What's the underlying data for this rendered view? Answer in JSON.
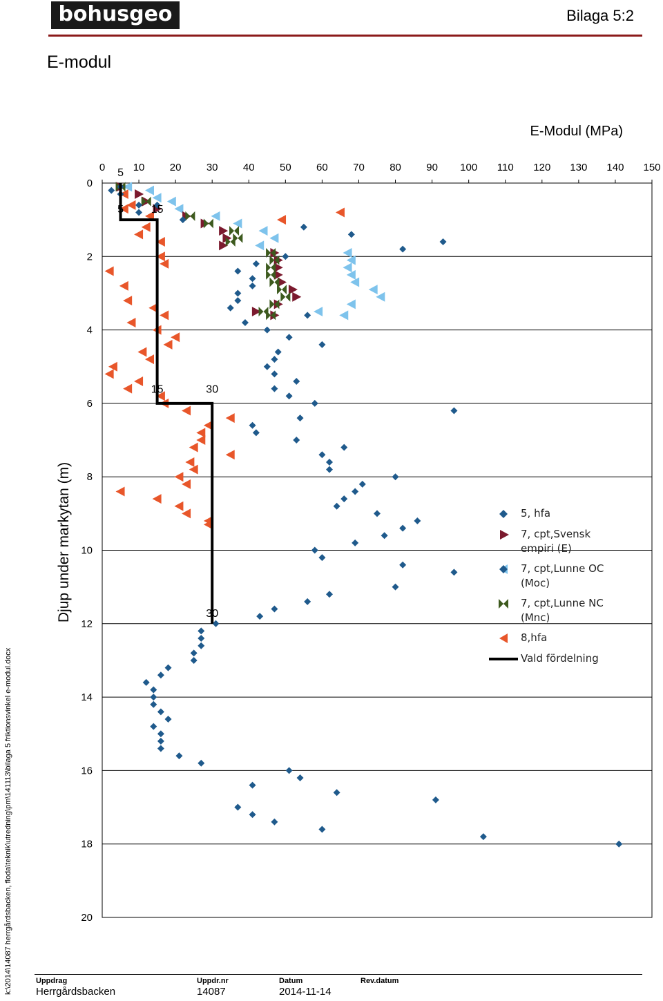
{
  "header": {
    "logo_text": "bohusgeo",
    "appendix": "Bilaga 5:2"
  },
  "page_title": "E-modul",
  "side_path": "k:\\2014\\14087 herrgårdsbacken, floda\\teknik\\utredning\\pm\\141113\\bilaga 5 friktionsvinkel e-modul.docx",
  "footer": {
    "uppdrag_label": "Uppdrag",
    "uppdrag_value": "Herrgårdsbacken",
    "uppdrnr_label": "Uppdr.nr",
    "uppdrnr_value": "14087",
    "datum_label": "Datum",
    "datum_value": "2014-11-14",
    "revdatum_label": "Rev.datum"
  },
  "chart_data": {
    "type": "scatter",
    "title": "E-Modul (MPa)",
    "ylabel": "Djup under markytan (m)",
    "xlim": [
      0,
      150
    ],
    "ylim": [
      20,
      0
    ],
    "x_ticks": [
      0,
      10,
      20,
      30,
      40,
      50,
      60,
      70,
      80,
      90,
      100,
      110,
      120,
      130,
      140,
      150
    ],
    "y_ticks": [
      0,
      2,
      4,
      6,
      8,
      10,
      12,
      14,
      16,
      18,
      20
    ],
    "grid": "horizontal",
    "colors": {
      "hfa5": "#1f5a8c",
      "svensk": "#7b1a2e",
      "lunne_oc": "#7ec3ec",
      "lunne_nc": "#3d5a1e",
      "hfa8": "#e8562a",
      "vald": "#000000"
    },
    "series": [
      {
        "name": "5, hfa",
        "marker": "diamond",
        "color": "#1f5a8c",
        "points": [
          [
            2.5,
            0.2
          ],
          [
            5,
            0.1
          ],
          [
            5,
            0.3
          ],
          [
            10,
            0.6
          ],
          [
            10,
            0.8
          ],
          [
            15,
            0.6
          ],
          [
            22,
            1
          ],
          [
            55,
            1.2
          ],
          [
            68,
            1.4
          ],
          [
            82,
            1.8
          ],
          [
            93,
            1.6
          ],
          [
            50,
            2
          ],
          [
            37,
            2.4
          ],
          [
            42,
            2.2
          ],
          [
            41,
            2.6
          ],
          [
            41,
            2.8
          ],
          [
            37,
            3
          ],
          [
            37,
            3.2
          ],
          [
            35,
            3.4
          ],
          [
            56,
            3.6
          ],
          [
            39,
            3.8
          ],
          [
            45,
            4
          ],
          [
            51,
            4.2
          ],
          [
            60,
            4.4
          ],
          [
            48,
            4.6
          ],
          [
            47,
            4.8
          ],
          [
            45,
            5
          ],
          [
            47,
            5.2
          ],
          [
            53,
            5.4
          ],
          [
            47,
            5.6
          ],
          [
            51,
            5.8
          ],
          [
            58,
            6
          ],
          [
            96,
            6.2
          ],
          [
            54,
            6.4
          ],
          [
            41,
            6.6
          ],
          [
            42,
            6.8
          ],
          [
            53,
            7
          ],
          [
            66,
            7.2
          ],
          [
            60,
            7.4
          ],
          [
            62,
            7.6
          ],
          [
            62,
            7.8
          ],
          [
            80,
            8
          ],
          [
            71,
            8.2
          ],
          [
            69,
            8.4
          ],
          [
            66,
            8.6
          ],
          [
            64,
            8.8
          ],
          [
            75,
            9
          ],
          [
            86,
            9.2
          ],
          [
            82,
            9.4
          ],
          [
            77,
            9.6
          ],
          [
            69,
            9.8
          ],
          [
            58,
            10
          ],
          [
            60,
            10.2
          ],
          [
            82,
            10.4
          ],
          [
            96,
            10.6
          ],
          [
            80,
            11
          ],
          [
            62,
            11.2
          ],
          [
            56,
            11.4
          ],
          [
            47,
            11.6
          ],
          [
            43,
            11.8
          ],
          [
            31,
            12
          ],
          [
            27,
            12.2
          ],
          [
            27,
            12.4
          ],
          [
            27,
            12.6
          ],
          [
            25,
            12.8
          ],
          [
            25,
            13
          ],
          [
            18,
            13.2
          ],
          [
            16,
            13.4
          ],
          [
            12,
            13.6
          ],
          [
            14,
            13.8
          ],
          [
            14,
            14
          ],
          [
            14,
            14.2
          ],
          [
            16,
            14.4
          ],
          [
            18,
            14.6
          ],
          [
            14,
            14.8
          ],
          [
            16,
            15
          ],
          [
            16,
            15.2
          ],
          [
            16,
            15.4
          ],
          [
            21,
            15.6
          ],
          [
            27,
            15.8
          ],
          [
            51,
            16
          ],
          [
            54,
            16.2
          ],
          [
            41,
            16.4
          ],
          [
            64,
            16.6
          ],
          [
            91,
            16.8
          ],
          [
            37,
            17
          ],
          [
            41,
            17.2
          ],
          [
            47,
            17.4
          ],
          [
            60,
            17.6
          ],
          [
            104,
            17.8
          ],
          [
            141,
            18
          ]
        ]
      },
      {
        "name": "7, cpt,Svensk empiri (E)",
        "marker": "triangle-right",
        "color": "#7b1a2e",
        "points": [
          [
            5,
            0.1
          ],
          [
            10,
            0.3
          ],
          [
            12,
            0.5
          ],
          [
            15,
            0.7
          ],
          [
            23,
            0.9
          ],
          [
            28,
            1.1
          ],
          [
            33,
            1.3
          ],
          [
            34,
            1.5
          ],
          [
            33,
            1.7
          ],
          [
            47,
            1.9
          ],
          [
            48,
            2.1
          ],
          [
            48,
            2.3
          ],
          [
            48,
            2.5
          ],
          [
            49,
            2.7
          ],
          [
            52,
            2.9
          ],
          [
            53,
            3.1
          ],
          [
            48,
            3.3
          ],
          [
            42,
            3.5
          ],
          [
            47,
            3.6
          ]
        ]
      },
      {
        "name": "7, cpt,Lunne OC (Moc)",
        "marker": "triangle-left",
        "color": "#7ec3ec",
        "points": [
          [
            7,
            0.1
          ],
          [
            13,
            0.2
          ],
          [
            15,
            0.4
          ],
          [
            19,
            0.5
          ],
          [
            21,
            0.7
          ],
          [
            31,
            0.9
          ],
          [
            37,
            1.1
          ],
          [
            44,
            1.3
          ],
          [
            47,
            1.5
          ],
          [
            43,
            1.7
          ],
          [
            67,
            1.9
          ],
          [
            68,
            2.1
          ],
          [
            67,
            2.3
          ],
          [
            68,
            2.5
          ],
          [
            69,
            2.7
          ],
          [
            74,
            2.9
          ],
          [
            76,
            3.1
          ],
          [
            68,
            3.3
          ],
          [
            59,
            3.5
          ],
          [
            66,
            3.6
          ]
        ]
      },
      {
        "name": "7, cpt,Lunne NC (Mnc)",
        "marker": "bowtie",
        "color": "#3d5a1e",
        "points": [
          [
            5,
            0.1
          ],
          [
            12,
            0.5
          ],
          [
            24,
            0.9
          ],
          [
            29,
            1.1
          ],
          [
            36,
            1.3
          ],
          [
            37,
            1.5
          ],
          [
            35,
            1.6
          ],
          [
            46,
            1.9
          ],
          [
            47,
            2.1
          ],
          [
            46,
            2.3
          ],
          [
            46,
            2.5
          ],
          [
            47,
            2.7
          ],
          [
            49,
            2.9
          ],
          [
            50,
            3.1
          ],
          [
            47,
            3.3
          ],
          [
            44,
            3.5
          ],
          [
            46,
            3.6
          ]
        ]
      },
      {
        "name": "8,hfa",
        "marker": "triangle-left",
        "color": "#e8562a",
        "points": [
          [
            6,
            0.3
          ],
          [
            8,
            0.6
          ],
          [
            6,
            0.7
          ],
          [
            13,
            0.9
          ],
          [
            65,
            0.8
          ],
          [
            49,
            1
          ],
          [
            12,
            1.2
          ],
          [
            10,
            1.4
          ],
          [
            16,
            1.6
          ],
          [
            16,
            2
          ],
          [
            17,
            2.2
          ],
          [
            2,
            2.4
          ],
          [
            6,
            2.8
          ],
          [
            7,
            3.2
          ],
          [
            14,
            3.4
          ],
          [
            17,
            3.6
          ],
          [
            8,
            3.8
          ],
          [
            15,
            4
          ],
          [
            20,
            4.2
          ],
          [
            18,
            4.4
          ],
          [
            11,
            4.6
          ],
          [
            13,
            4.8
          ],
          [
            3,
            5
          ],
          [
            2,
            5.2
          ],
          [
            10,
            5.4
          ],
          [
            7,
            5.6
          ],
          [
            16,
            5.8
          ],
          [
            17,
            6
          ],
          [
            23,
            6.2
          ],
          [
            35,
            6.4
          ],
          [
            29,
            6.6
          ],
          [
            27,
            6.8
          ],
          [
            27,
            7
          ],
          [
            25,
            7.2
          ],
          [
            35,
            7.4
          ],
          [
            24,
            7.6
          ],
          [
            25,
            7.8
          ],
          [
            21,
            8
          ],
          [
            23,
            8.2
          ],
          [
            5,
            8.4
          ],
          [
            15,
            8.6
          ],
          [
            21,
            8.8
          ],
          [
            23,
            9
          ],
          [
            29,
            9.2
          ],
          [
            29,
            9.3
          ]
        ]
      },
      {
        "name": "Vald fördelning",
        "marker": "line",
        "color": "#000000",
        "points": [
          [
            5,
            0
          ],
          [
            5,
            1
          ],
          [
            15,
            1
          ],
          [
            15,
            6
          ],
          [
            30,
            6
          ],
          [
            30,
            12
          ]
        ]
      }
    ],
    "annotations": [
      {
        "text": "5",
        "x": 5,
        "y": -0.3
      },
      {
        "text": "5",
        "x": 5,
        "y": 0.7
      },
      {
        "text": "15",
        "x": 15,
        "y": 0.7
      },
      {
        "text": "15",
        "x": 15,
        "y": 5.6
      },
      {
        "text": "30",
        "x": 30,
        "y": 5.6
      },
      {
        "text": "30",
        "x": 30,
        "y": 11.7
      }
    ]
  }
}
